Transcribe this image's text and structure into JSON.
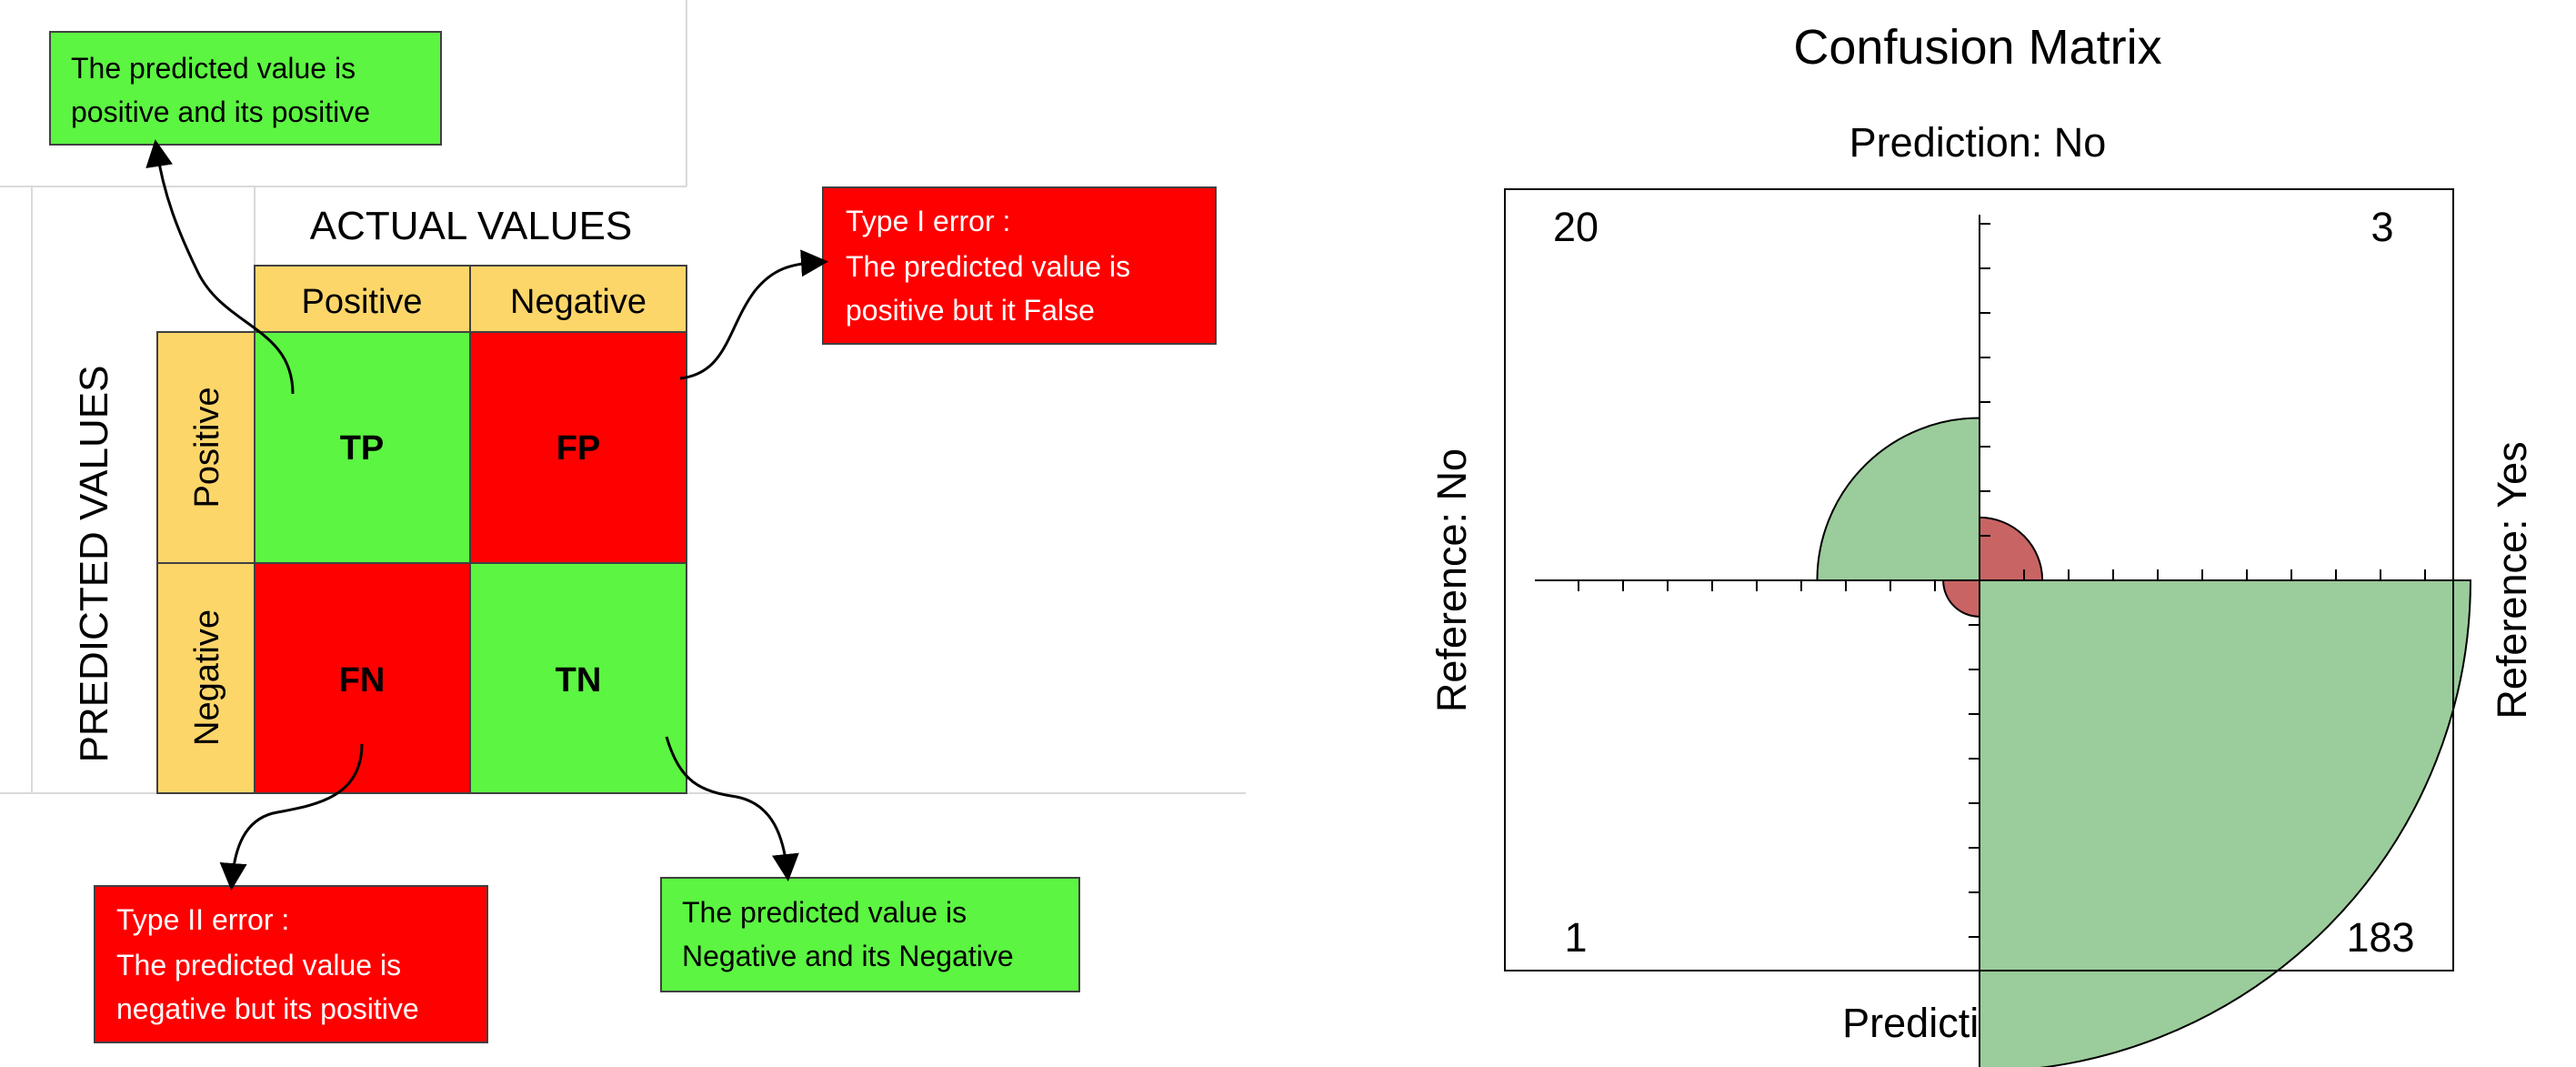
{
  "left_diagram": {
    "header_actual": "ACTUAL VALUES",
    "header_predicted": "PREDICTED VALUES",
    "col_labels": [
      "Positive",
      "Negative"
    ],
    "row_labels": [
      "Positive",
      "Negative"
    ],
    "cells": {
      "tp": "TP",
      "fp": "FP",
      "fn": "FN",
      "tn": "TN"
    },
    "callouts": {
      "tp": [
        "The predicted value is",
        "positive and its positive"
      ],
      "fp": [
        "Type I error :",
        "The predicted value is",
        "positive but it False"
      ],
      "fn": [
        "Type II error :",
        "The predicted value is",
        "negative but its positive"
      ],
      "tn": [
        "The predicted value is",
        "Negative and its Negative"
      ]
    },
    "colors": {
      "green": "#5cf542",
      "red": "#ff0000",
      "header_yellow": "#fdd66a"
    }
  },
  "chart_data": {
    "type": "fourfold",
    "title": "Confusion Matrix",
    "top_label": "Prediction: No",
    "bottom_label": "Prediction: Yes",
    "left_label": "Reference: No",
    "right_label": "Reference: Yes",
    "cells": [
      {
        "prediction": "No",
        "reference": "No",
        "value": 20,
        "label": "20",
        "color": "#9bcc9b",
        "quadrant": "top-left"
      },
      {
        "prediction": "No",
        "reference": "Yes",
        "value": 3,
        "label": "3",
        "color": "#c86464",
        "quadrant": "top-right"
      },
      {
        "prediction": "Yes",
        "reference": "No",
        "value": 1,
        "label": "1",
        "color": "#c86464",
        "quadrant": "bottom-left"
      },
      {
        "prediction": "Yes",
        "reference": "Yes",
        "value": 183,
        "label": "183",
        "color": "#9bcc9b",
        "quadrant": "bottom-right"
      }
    ]
  }
}
